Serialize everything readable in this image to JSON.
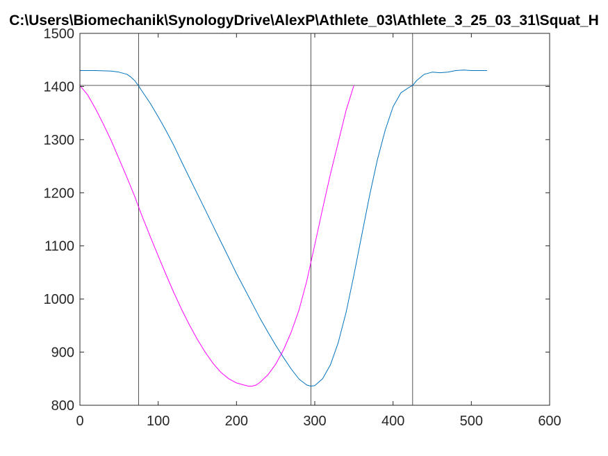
{
  "chart_data": {
    "type": "line",
    "title": "C:\\Users\\Biomechanik\\SynologyDrive\\AlexP\\Athlete_03\\Athlete_3_25_03_31\\Squat_H",
    "xlabel": "",
    "ylabel": "",
    "xlim": [
      0,
      600
    ],
    "ylim": [
      800,
      1500
    ],
    "xticks": [
      0,
      100,
      200,
      300,
      400,
      500,
      600
    ],
    "yticks": [
      800,
      900,
      1000,
      1100,
      1200,
      1300,
      1400,
      1500
    ],
    "grid": false,
    "box": true,
    "series": [
      {
        "color": "#0072BD",
        "x": [
          0,
          20,
          40,
          50,
          60,
          65,
          70,
          75,
          80,
          90,
          100,
          110,
          120,
          130,
          140,
          150,
          160,
          170,
          180,
          190,
          200,
          210,
          220,
          230,
          240,
          250,
          260,
          270,
          280,
          290,
          295,
          300,
          310,
          320,
          330,
          340,
          350,
          360,
          370,
          380,
          390,
          400,
          410,
          420,
          425,
          430,
          440,
          450,
          460,
          470,
          480,
          490,
          500,
          510,
          520
        ],
        "y": [
          1430,
          1430,
          1429,
          1427,
          1423,
          1418,
          1411,
          1401,
          1390,
          1368,
          1343,
          1317,
          1289,
          1258,
          1228,
          1198,
          1168,
          1138,
          1108,
          1078,
          1048,
          1020,
          992,
          964,
          938,
          913,
          890,
          868,
          849,
          838,
          836,
          837,
          850,
          876,
          918,
          975,
          1045,
          1120,
          1195,
          1262,
          1318,
          1362,
          1388,
          1398,
          1402,
          1411,
          1423,
          1427,
          1426,
          1427,
          1430,
          1431,
          1430,
          1430,
          1430
        ]
      },
      {
        "color": "#FF00FF",
        "x": [
          0,
          10,
          20,
          30,
          40,
          50,
          60,
          70,
          75,
          80,
          90,
          100,
          110,
          120,
          130,
          140,
          150,
          160,
          170,
          180,
          190,
          200,
          210,
          215,
          220,
          225,
          230,
          240,
          250,
          260,
          270,
          280,
          290,
          295,
          300,
          310,
          320,
          330,
          340,
          350
        ],
        "y": [
          1402,
          1384,
          1358,
          1329,
          1298,
          1264,
          1229,
          1193,
          1173,
          1154,
          1117,
          1081,
          1046,
          1012,
          980,
          951,
          924,
          900,
          879,
          862,
          850,
          842,
          838,
          836,
          836,
          838,
          843,
          857,
          877,
          904,
          938,
          980,
          1035,
          1069,
          1102,
          1170,
          1235,
          1295,
          1355,
          1402
        ]
      }
    ],
    "reference_lines": {
      "vertical_x": [
        75,
        295,
        425
      ],
      "horizontal_y": [
        1402
      ]
    }
  }
}
